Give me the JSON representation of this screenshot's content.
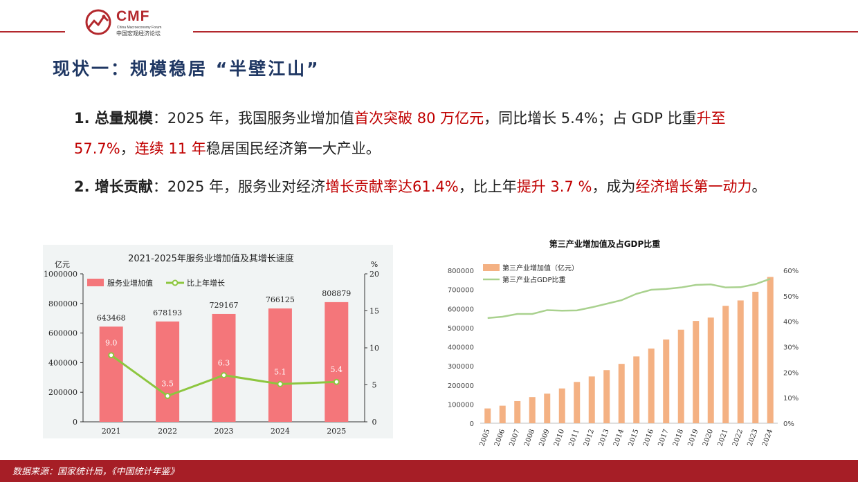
{
  "header": {
    "logo_name": "CMF",
    "logo_sub_en": "China Macroeconomy Forum",
    "logo_sub_cn": "中国宏观经济论坛",
    "brand_color": "#b3282d"
  },
  "title": "现状一：规模稳居 “半壁江山”",
  "paragraphs": [
    {
      "segments": [
        {
          "text": "1. 总量规模",
          "style": "bold"
        },
        {
          "text": "：2025 年，我国服务业增加值",
          "style": "normal"
        },
        {
          "text": "首次突破 80 万亿元",
          "style": "red"
        },
        {
          "text": "，同比增长 5.4%；占 GDP 比重",
          "style": "normal"
        },
        {
          "text": "升至 57.7%",
          "style": "red"
        },
        {
          "text": "，",
          "style": "normal"
        },
        {
          "text": "连续 11 年",
          "style": "red"
        },
        {
          "text": "稳居国民经济第一大产业。",
          "style": "normal"
        }
      ]
    },
    {
      "segments": [
        {
          "text": "2. 增长贡献",
          "style": "bold"
        },
        {
          "text": "：2025 年，服务业对经济",
          "style": "normal"
        },
        {
          "text": "增长贡献率达61.4%",
          "style": "red"
        },
        {
          "text": "，比上年",
          "style": "normal"
        },
        {
          "text": "提升 3.7 %",
          "style": "red"
        },
        {
          "text": "，成为",
          "style": "normal"
        },
        {
          "text": "经济增长第一动力",
          "style": "red"
        },
        {
          "text": "。",
          "style": "normal"
        }
      ]
    }
  ],
  "chart_data": [
    {
      "type": "bar",
      "title": "2021-2025年服务业增加值及其增长速度",
      "y_unit_left": "亿元",
      "y_unit_right": "%",
      "categories": [
        "2021",
        "2022",
        "2023",
        "2024",
        "2025"
      ],
      "series": [
        {
          "name": "服务业增加值",
          "type": "bar",
          "axis": "left",
          "color": "#f4767a",
          "values": [
            643468,
            678193,
            729167,
            766125,
            808879
          ]
        },
        {
          "name": "比上年增长",
          "type": "line",
          "axis": "right",
          "color": "#8dc63f",
          "values": [
            9.0,
            3.5,
            6.3,
            5.1,
            5.4
          ]
        }
      ],
      "ylim_left": [
        0,
        1000000
      ],
      "yticks_left": [
        "0",
        "200000",
        "400000",
        "600000",
        "800000",
        "1000000"
      ],
      "ylim_right": [
        0,
        20
      ],
      "yticks_right": [
        "0",
        "5",
        "10",
        "15",
        "20"
      ],
      "bar_labels": [
        "643468",
        "678193",
        "729167",
        "766125",
        "808879"
      ],
      "line_labels": [
        "9.0",
        "3.5",
        "6.3",
        "5.1",
        "5.4"
      ],
      "legend": "top-left",
      "background": "#f1f4f4"
    },
    {
      "type": "bar",
      "title": "第三产业增加值及占GDP比重",
      "categories": [
        "2005",
        "2006",
        "2007",
        "2008",
        "2009",
        "2010",
        "2011",
        "2012",
        "2013",
        "2014",
        "2015",
        "2016",
        "2017",
        "2018",
        "2019",
        "2020",
        "2021",
        "2022",
        "2023",
        "2024"
      ],
      "series": [
        {
          "name": "第三产业增加值（亿元）",
          "type": "bar",
          "axis": "left",
          "color": "#f4b183",
          "values": [
            77400,
            91800,
            116000,
            136900,
            154800,
            182000,
            216100,
            244800,
            277900,
            310700,
            349700,
            390800,
            438400,
            489700,
            535400,
            553000,
            614500,
            642700,
            688200,
            765600
          ]
        },
        {
          "name": "第三产业占GDP比重",
          "type": "line",
          "axis": "right",
          "color": "#a9d18e",
          "values": [
            41.3,
            41.8,
            42.9,
            42.9,
            44.4,
            44.2,
            44.3,
            45.5,
            46.9,
            48.3,
            50.8,
            52.4,
            52.7,
            53.3,
            54.3,
            54.5,
            53.3,
            53.4,
            54.6,
            56.7
          ]
        }
      ],
      "ylim_left": [
        0,
        800000
      ],
      "yticks_left": [
        "0",
        "100000",
        "200000",
        "300000",
        "400000",
        "500000",
        "600000",
        "700000",
        "800000"
      ],
      "ylim_right": [
        0,
        60
      ],
      "yticks_right": [
        "0%",
        "10%",
        "20%",
        "30%",
        "40%",
        "50%",
        "60%"
      ],
      "legend": "top-left"
    }
  ],
  "footer": {
    "source": "数据来源：国家统计局，《中国统计年鉴》",
    "background": "#a61e26"
  }
}
